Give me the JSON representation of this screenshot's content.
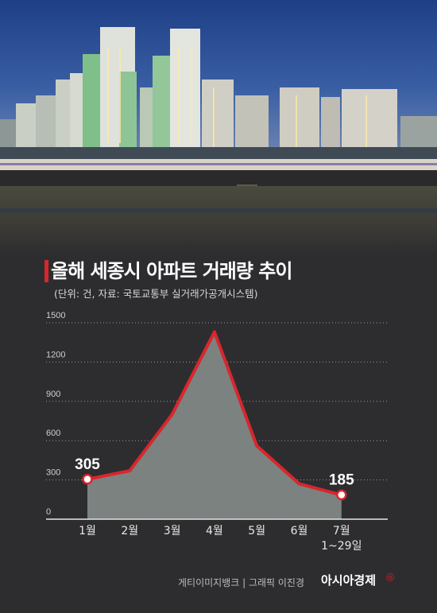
{
  "header": {
    "title": "올해 세종시 아파트 거래량 추이",
    "subtitle": "(단위: 건, 자료: 국토교통부 실거래가공개시스템)",
    "accent_color": "#d9262c"
  },
  "footer": {
    "credit": "게티이미지뱅크  |   그래픽 이진경",
    "brand": "아시아경제",
    "brand_mark": "㉧"
  },
  "colors": {
    "background": "#2d2d2f",
    "area_fill": "#7b8280",
    "line": "#d9262c",
    "text": "#ffffff"
  },
  "chart_data": {
    "type": "area",
    "title": "",
    "xlabel": "",
    "ylabel": "",
    "categories": [
      "1월",
      "2월",
      "3월",
      "4월",
      "5월",
      "6월",
      "7월\n1~29일"
    ],
    "series": [
      {
        "name": "",
        "values": [
          305,
          370,
          800,
          1430,
          560,
          270,
          185
        ]
      }
    ],
    "ylim": [
      0,
      1500
    ],
    "yticks": [
      0,
      300,
      600,
      900,
      1200,
      1500
    ],
    "data_labels": [
      {
        "index": 0,
        "text": "305"
      },
      {
        "index": 6,
        "text": "185"
      }
    ],
    "grid": "dotted horizontal"
  }
}
